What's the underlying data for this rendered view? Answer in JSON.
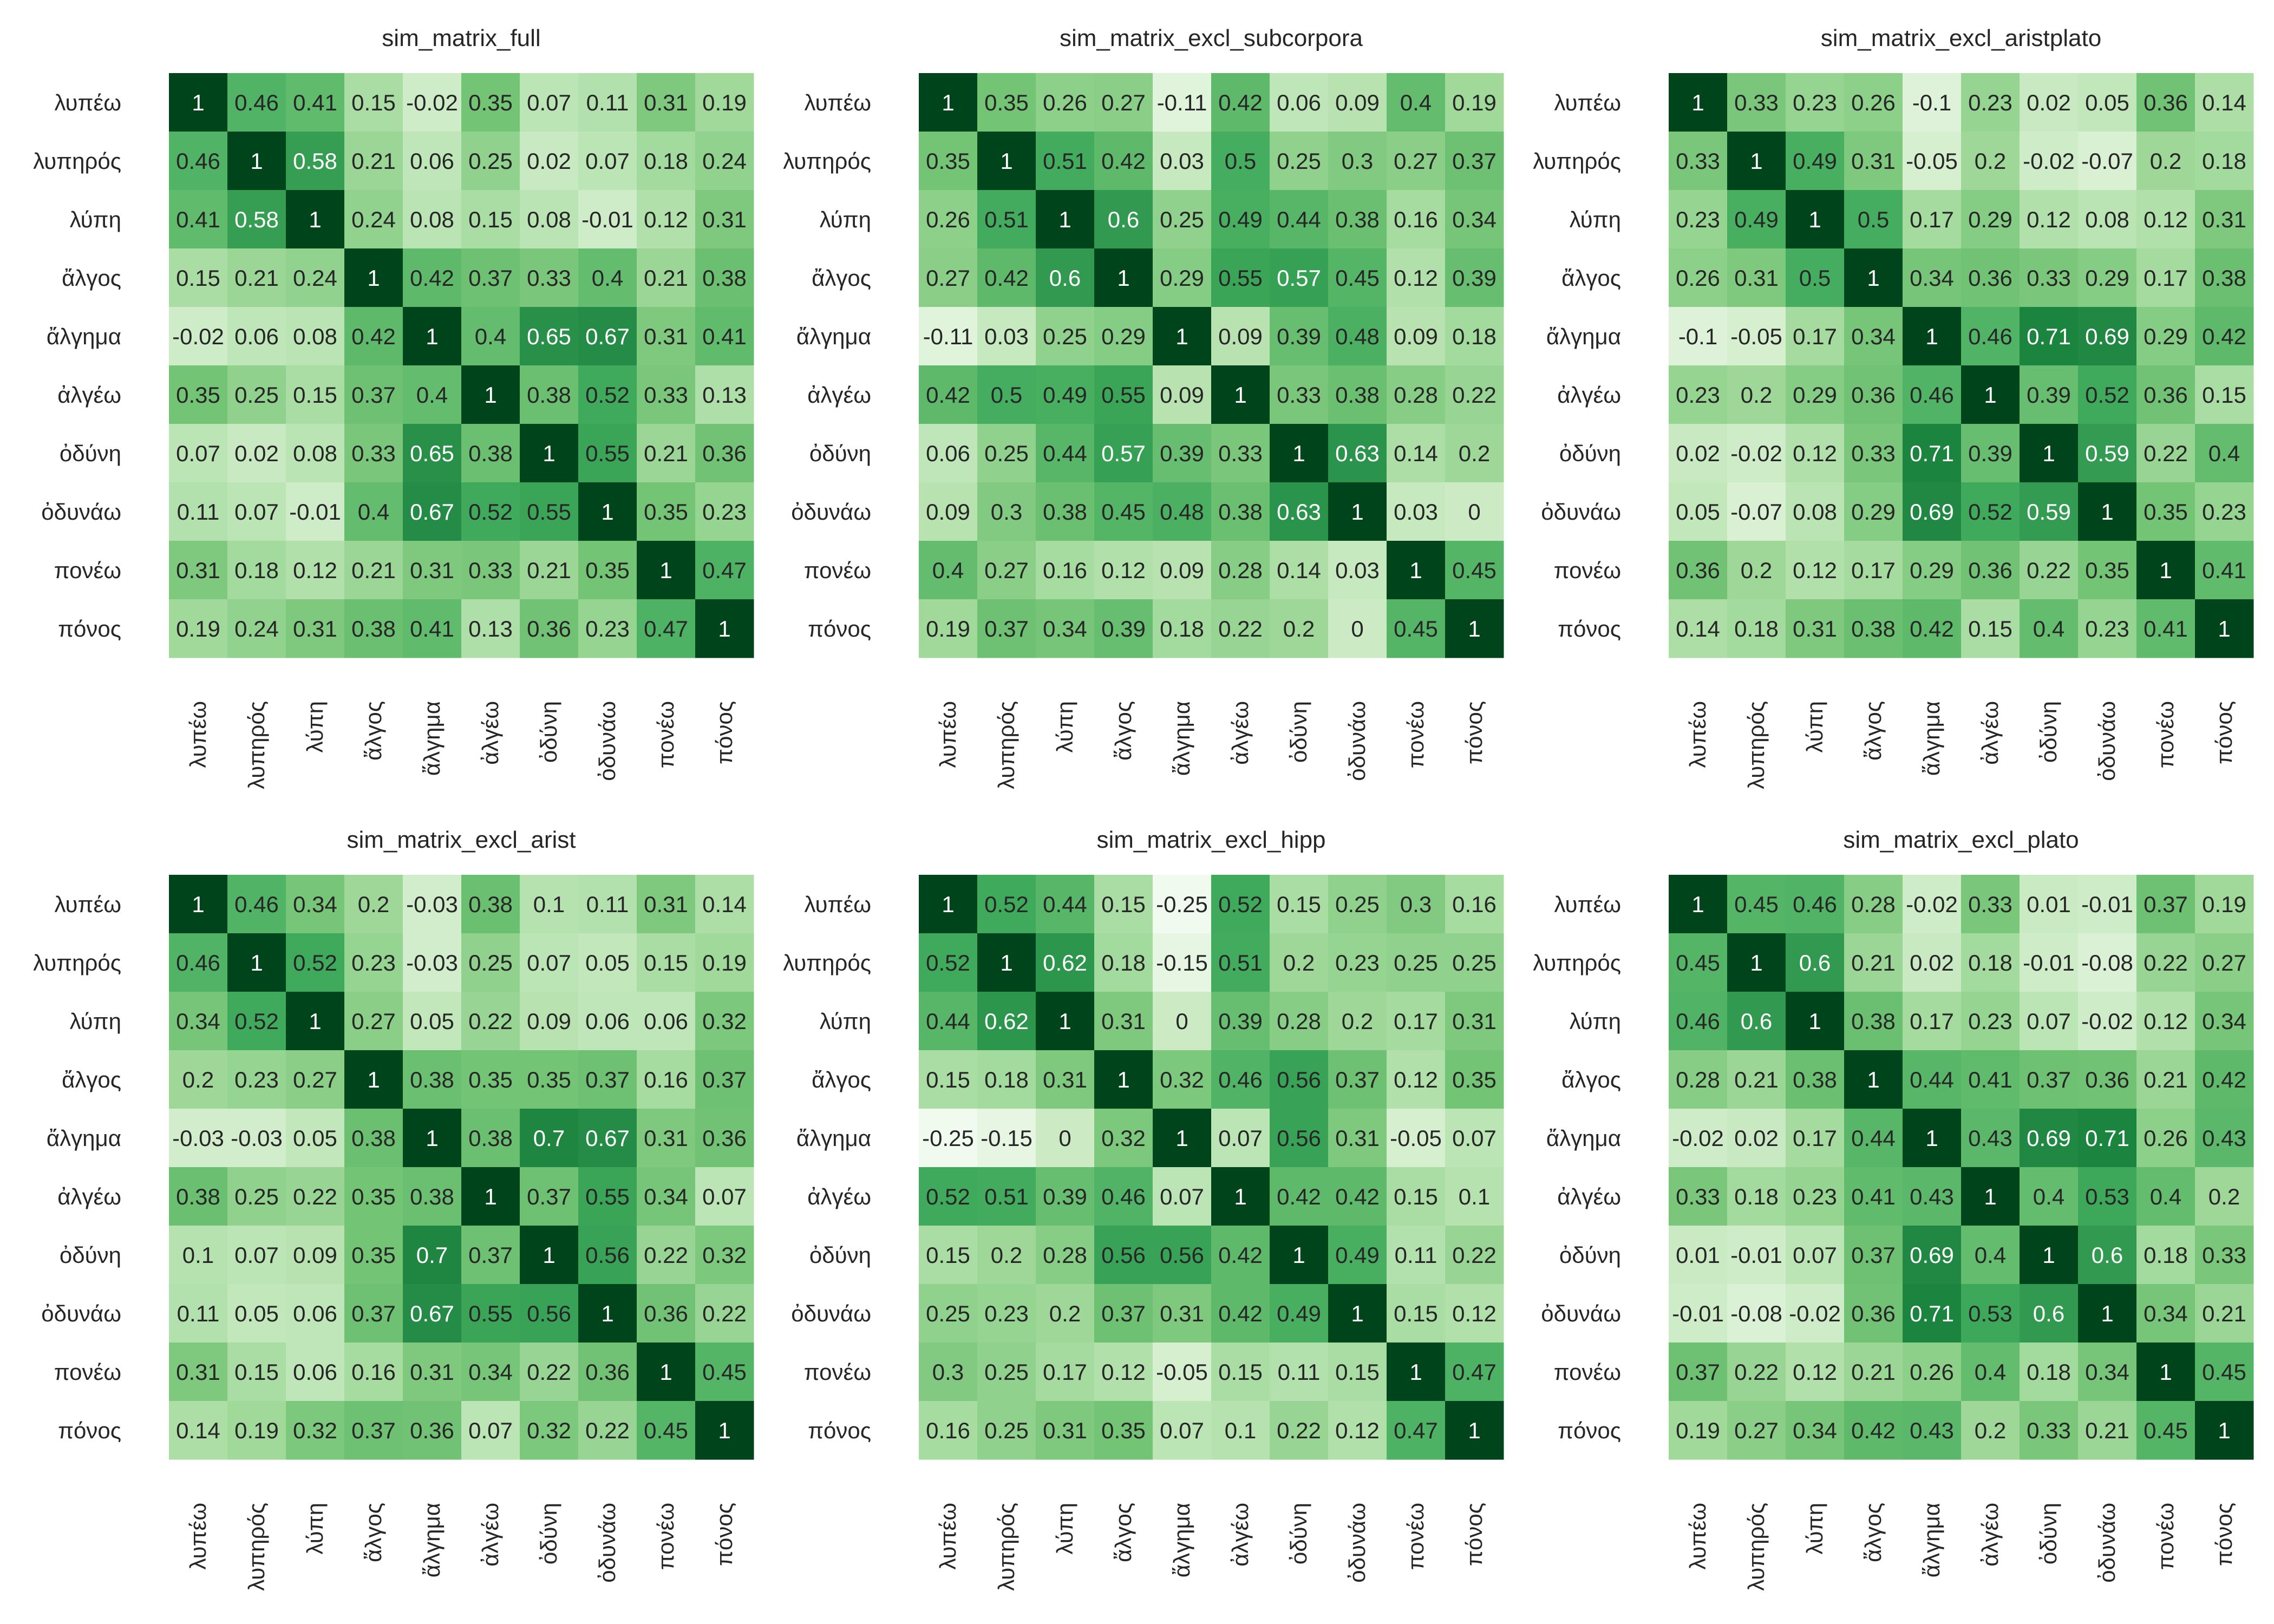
{
  "labels": [
    "λυπέω",
    "λυπηρός",
    "λύπη",
    "ἄλγος",
    "ἄλγημα",
    "ἀλγέω",
    "ὀδύνη",
    "ὀδυνάω",
    "πονέω",
    "πόνος"
  ],
  "colors": {
    "low": "#f7fcf5",
    "high": "#00441b",
    "text_dark": "#262626",
    "text_light": "#ffffff"
  },
  "chart_data": [
    {
      "type": "heatmap",
      "title": "sim_matrix_full",
      "values": [
        [
          1,
          0.46,
          0.41,
          0.15,
          -0.02,
          0.35,
          0.07,
          0.11,
          0.31,
          0.19
        ],
        [
          0.46,
          1,
          0.58,
          0.21,
          0.06,
          0.25,
          0.02,
          0.07,
          0.18,
          0.24
        ],
        [
          0.41,
          0.58,
          1,
          0.24,
          0.08,
          0.15,
          0.08,
          -0.01,
          0.12,
          0.31
        ],
        [
          0.15,
          0.21,
          0.24,
          1,
          0.42,
          0.37,
          0.33,
          0.4,
          0.21,
          0.38
        ],
        [
          -0.02,
          0.06,
          0.08,
          0.42,
          1,
          0.4,
          0.65,
          0.67,
          0.31,
          0.41
        ],
        [
          0.35,
          0.25,
          0.15,
          0.37,
          0.4,
          1,
          0.38,
          0.52,
          0.33,
          0.13
        ],
        [
          0.07,
          0.02,
          0.08,
          0.33,
          0.65,
          0.38,
          1,
          0.55,
          0.21,
          0.36
        ],
        [
          0.11,
          0.07,
          -0.01,
          0.4,
          0.67,
          0.52,
          0.55,
          1,
          0.35,
          0.23
        ],
        [
          0.31,
          0.18,
          0.12,
          0.21,
          0.31,
          0.33,
          0.21,
          0.35,
          1,
          0.47
        ],
        [
          0.19,
          0.24,
          0.31,
          0.38,
          0.41,
          0.13,
          0.36,
          0.23,
          0.47,
          1
        ]
      ]
    },
    {
      "type": "heatmap",
      "title": "sim_matrix_excl_subcorpora",
      "values": [
        [
          1,
          0.35,
          0.26,
          0.27,
          -0.11,
          0.42,
          0.06,
          0.09,
          0.4,
          0.19
        ],
        [
          0.35,
          1,
          0.51,
          0.42,
          0.03,
          0.5,
          0.25,
          0.3,
          0.27,
          0.37
        ],
        [
          0.26,
          0.51,
          1,
          0.6,
          0.25,
          0.49,
          0.44,
          0.38,
          0.16,
          0.34
        ],
        [
          0.27,
          0.42,
          0.6,
          1,
          0.29,
          0.55,
          0.57,
          0.45,
          0.12,
          0.39
        ],
        [
          -0.11,
          0.03,
          0.25,
          0.29,
          1,
          0.09,
          0.39,
          0.48,
          0.09,
          0.18
        ],
        [
          0.42,
          0.5,
          0.49,
          0.55,
          0.09,
          1,
          0.33,
          0.38,
          0.28,
          0.22
        ],
        [
          0.06,
          0.25,
          0.44,
          0.57,
          0.39,
          0.33,
          1,
          0.63,
          0.14,
          0.2
        ],
        [
          0.09,
          0.3,
          0.38,
          0.45,
          0.48,
          0.38,
          0.63,
          1,
          0.03,
          0
        ],
        [
          0.4,
          0.27,
          0.16,
          0.12,
          0.09,
          0.28,
          0.14,
          0.03,
          1,
          0.45
        ],
        [
          0.19,
          0.37,
          0.34,
          0.39,
          0.18,
          0.22,
          0.2,
          0,
          0.45,
          1
        ]
      ]
    },
    {
      "type": "heatmap",
      "title": "sim_matrix_excl_aristplato",
      "values": [
        [
          1,
          0.33,
          0.23,
          0.26,
          -0.1,
          0.23,
          0.02,
          0.05,
          0.36,
          0.14
        ],
        [
          0.33,
          1,
          0.49,
          0.31,
          -0.05,
          0.2,
          -0.02,
          -0.07,
          0.2,
          0.18
        ],
        [
          0.23,
          0.49,
          1,
          0.5,
          0.17,
          0.29,
          0.12,
          0.08,
          0.12,
          0.31
        ],
        [
          0.26,
          0.31,
          0.5,
          1,
          0.34,
          0.36,
          0.33,
          0.29,
          0.17,
          0.38
        ],
        [
          -0.1,
          -0.05,
          0.17,
          0.34,
          1,
          0.46,
          0.71,
          0.69,
          0.29,
          0.42
        ],
        [
          0.23,
          0.2,
          0.29,
          0.36,
          0.46,
          1,
          0.39,
          0.52,
          0.36,
          0.15
        ],
        [
          0.02,
          -0.02,
          0.12,
          0.33,
          0.71,
          0.39,
          1,
          0.59,
          0.22,
          0.4
        ],
        [
          0.05,
          -0.07,
          0.08,
          0.29,
          0.69,
          0.52,
          0.59,
          1,
          0.35,
          0.23
        ],
        [
          0.36,
          0.2,
          0.12,
          0.17,
          0.29,
          0.36,
          0.22,
          0.35,
          1,
          0.41
        ],
        [
          0.14,
          0.18,
          0.31,
          0.38,
          0.42,
          0.15,
          0.4,
          0.23,
          0.41,
          1
        ]
      ]
    },
    {
      "type": "heatmap",
      "title": "sim_matrix_excl_arist",
      "values": [
        [
          1,
          0.46,
          0.34,
          0.2,
          -0.03,
          0.38,
          0.1,
          0.11,
          0.31,
          0.14
        ],
        [
          0.46,
          1,
          0.52,
          0.23,
          -0.03,
          0.25,
          0.07,
          0.05,
          0.15,
          0.19
        ],
        [
          0.34,
          0.52,
          1,
          0.27,
          0.05,
          0.22,
          0.09,
          0.06,
          0.06,
          0.32
        ],
        [
          0.2,
          0.23,
          0.27,
          1,
          0.38,
          0.35,
          0.35,
          0.37,
          0.16,
          0.37
        ],
        [
          -0.03,
          -0.03,
          0.05,
          0.38,
          1,
          0.38,
          0.7,
          0.67,
          0.31,
          0.36
        ],
        [
          0.38,
          0.25,
          0.22,
          0.35,
          0.38,
          1,
          0.37,
          0.55,
          0.34,
          0.07
        ],
        [
          0.1,
          0.07,
          0.09,
          0.35,
          0.7,
          0.37,
          1,
          0.56,
          0.22,
          0.32
        ],
        [
          0.11,
          0.05,
          0.06,
          0.37,
          0.67,
          0.55,
          0.56,
          1,
          0.36,
          0.22
        ],
        [
          0.31,
          0.15,
          0.06,
          0.16,
          0.31,
          0.34,
          0.22,
          0.36,
          1,
          0.45
        ],
        [
          0.14,
          0.19,
          0.32,
          0.37,
          0.36,
          0.07,
          0.32,
          0.22,
          0.45,
          1
        ]
      ]
    },
    {
      "type": "heatmap",
      "title": "sim_matrix_excl_hipp",
      "values": [
        [
          1,
          0.52,
          0.44,
          0.15,
          -0.25,
          0.52,
          0.15,
          0.25,
          0.3,
          0.16
        ],
        [
          0.52,
          1,
          0.62,
          0.18,
          -0.15,
          0.51,
          0.2,
          0.23,
          0.25,
          0.25
        ],
        [
          0.44,
          0.62,
          1,
          0.31,
          0,
          0.39,
          0.28,
          0.2,
          0.17,
          0.31
        ],
        [
          0.15,
          0.18,
          0.31,
          1,
          0.32,
          0.46,
          0.56,
          0.37,
          0.12,
          0.35
        ],
        [
          -0.25,
          -0.15,
          0,
          0.32,
          1,
          0.07,
          0.56,
          0.31,
          -0.05,
          0.07
        ],
        [
          0.52,
          0.51,
          0.39,
          0.46,
          0.07,
          1,
          0.42,
          0.42,
          0.15,
          0.1
        ],
        [
          0.15,
          0.2,
          0.28,
          0.56,
          0.56,
          0.42,
          1,
          0.49,
          0.11,
          0.22
        ],
        [
          0.25,
          0.23,
          0.2,
          0.37,
          0.31,
          0.42,
          0.49,
          1,
          0.15,
          0.12
        ],
        [
          0.3,
          0.25,
          0.17,
          0.12,
          -0.05,
          0.15,
          0.11,
          0.15,
          1,
          0.47
        ],
        [
          0.16,
          0.25,
          0.31,
          0.35,
          0.07,
          0.1,
          0.22,
          0.12,
          0.47,
          1
        ]
      ]
    },
    {
      "type": "heatmap",
      "title": "sim_matrix_excl_plato",
      "values": [
        [
          1,
          0.45,
          0.46,
          0.28,
          -0.02,
          0.33,
          0.01,
          -0.01,
          0.37,
          0.19
        ],
        [
          0.45,
          1,
          0.6,
          0.21,
          0.02,
          0.18,
          -0.01,
          -0.08,
          0.22,
          0.27
        ],
        [
          0.46,
          0.6,
          1,
          0.38,
          0.17,
          0.23,
          0.07,
          -0.02,
          0.12,
          0.34
        ],
        [
          0.28,
          0.21,
          0.38,
          1,
          0.44,
          0.41,
          0.37,
          0.36,
          0.21,
          0.42
        ],
        [
          -0.02,
          0.02,
          0.17,
          0.44,
          1,
          0.43,
          0.69,
          0.71,
          0.26,
          0.43
        ],
        [
          0.33,
          0.18,
          0.23,
          0.41,
          0.43,
          1,
          0.4,
          0.53,
          0.4,
          0.2
        ],
        [
          0.01,
          -0.01,
          0.07,
          0.37,
          0.69,
          0.4,
          1,
          0.6,
          0.18,
          0.33
        ],
        [
          -0.01,
          -0.08,
          -0.02,
          0.36,
          0.71,
          0.53,
          0.6,
          1,
          0.34,
          0.21
        ],
        [
          0.37,
          0.22,
          0.12,
          0.21,
          0.26,
          0.4,
          0.18,
          0.34,
          1,
          0.45
        ],
        [
          0.19,
          0.27,
          0.34,
          0.42,
          0.43,
          0.2,
          0.33,
          0.21,
          0.45,
          1
        ]
      ]
    }
  ]
}
